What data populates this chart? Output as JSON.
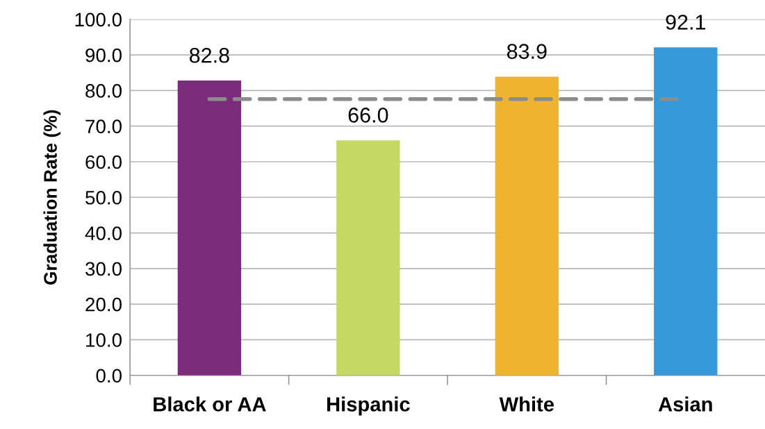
{
  "chart_data": {
    "type": "bar",
    "ylabel": "Graduation Rate (%)",
    "categories": [
      "Black or AA",
      "Hispanic",
      "White",
      "Asian"
    ],
    "values": [
      82.8,
      66.0,
      83.9,
      92.1
    ],
    "colors": [
      "#7b2d7b",
      "#c5d862",
      "#efb330",
      "#369ada"
    ],
    "value_labels": [
      "82.8",
      "66.0",
      "83.9",
      "92.1"
    ],
    "ylim": [
      0,
      100
    ],
    "yticks": [
      {
        "value": 0,
        "label": "0.0"
      },
      {
        "value": 10,
        "label": "10.0"
      },
      {
        "value": 20,
        "label": "20.0"
      },
      {
        "value": 30,
        "label": "30.0"
      },
      {
        "value": 40,
        "label": "40.0"
      },
      {
        "value": 50,
        "label": "50.0"
      },
      {
        "value": 60,
        "label": "60.0"
      },
      {
        "value": 70,
        "label": "70.0"
      },
      {
        "value": 80,
        "label": "80.0"
      },
      {
        "value": 90,
        "label": "90.0"
      },
      {
        "value": 100,
        "label": "100.0"
      }
    ],
    "ref_lines": [
      {
        "axis": "y",
        "value": 77.6,
        "color": "#8c8c8c",
        "line_style": "dashed"
      }
    ],
    "grid": "y"
  }
}
